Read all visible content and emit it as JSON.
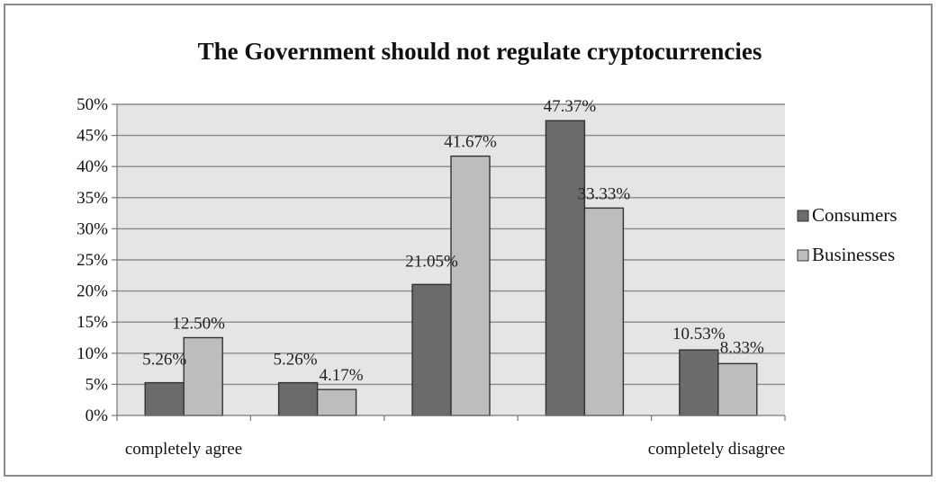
{
  "chart_data": {
    "type": "bar",
    "title": "The Government should not regulate cryptocurrencies",
    "xlabel": "",
    "ylabel": "",
    "categories": [
      "completely agree",
      "",
      "",
      "",
      "completely disagree"
    ],
    "x_tick_labels": [
      "completely agree",
      "completely disagree"
    ],
    "y_ticks": [
      "0%",
      "5%",
      "10%",
      "15%",
      "20%",
      "25%",
      "30%",
      "35%",
      "40%",
      "45%",
      "50%"
    ],
    "ylim": [
      0,
      50
    ],
    "grid": true,
    "legend_position": "right",
    "series": [
      {
        "name": "Consumers",
        "color": "#6b6b6b",
        "values": [
          5.26,
          5.26,
          21.05,
          47.37,
          10.53
        ],
        "labels": [
          "5.26%",
          "5.26%",
          "21.05%",
          "47.37%",
          "10.53%"
        ]
      },
      {
        "name": "Businesses",
        "color": "#bdbdbd",
        "values": [
          12.5,
          4.17,
          41.67,
          33.33,
          8.33
        ],
        "labels": [
          "12.50%",
          "4.17%",
          "41.67%",
          "33.33%",
          "8.33%"
        ]
      }
    ]
  }
}
